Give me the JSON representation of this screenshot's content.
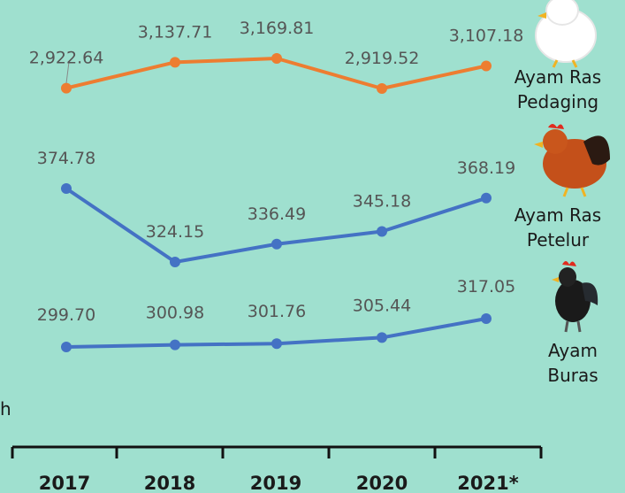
{
  "chart_data": {
    "type": "line",
    "categories": [
      "2017",
      "2018",
      "2019",
      "2020",
      "2021*"
    ],
    "series": [
      {
        "name": "Ayam Ras Pedaging",
        "color": "#ed7d31",
        "values": [
          2922.64,
          3137.71,
          3169.81,
          2919.52,
          3107.18
        ],
        "labels": [
          "2,922.64",
          "3,137.71",
          "3,169.81",
          "2,919.52",
          "3,107.18"
        ]
      },
      {
        "name": "Ayam Ras Petelur",
        "color": "#4472c4",
        "values": [
          374.78,
          324.15,
          336.49,
          345.18,
          368.19
        ],
        "labels": [
          "374.78",
          "324.15",
          "336.49",
          "345.18",
          "368.19"
        ]
      },
      {
        "name": "Ayam Buras",
        "color": "#4472c4",
        "values": [
          299.7,
          300.98,
          301.76,
          305.44,
          317.05
        ],
        "labels": [
          "299.70",
          "300.98",
          "301.76",
          "305.44",
          "317.05"
        ]
      }
    ],
    "legend": [
      {
        "line1": "Ayam Ras",
        "line2": "Pedaging",
        "icon": "white-chicken-icon"
      },
      {
        "line1": "Ayam Ras",
        "line2": "Petelur",
        "icon": "brown-hen-icon"
      },
      {
        "line1": "Ayam",
        "line2": "Buras",
        "icon": "black-rooster-icon"
      }
    ],
    "clipped_text": "h"
  }
}
